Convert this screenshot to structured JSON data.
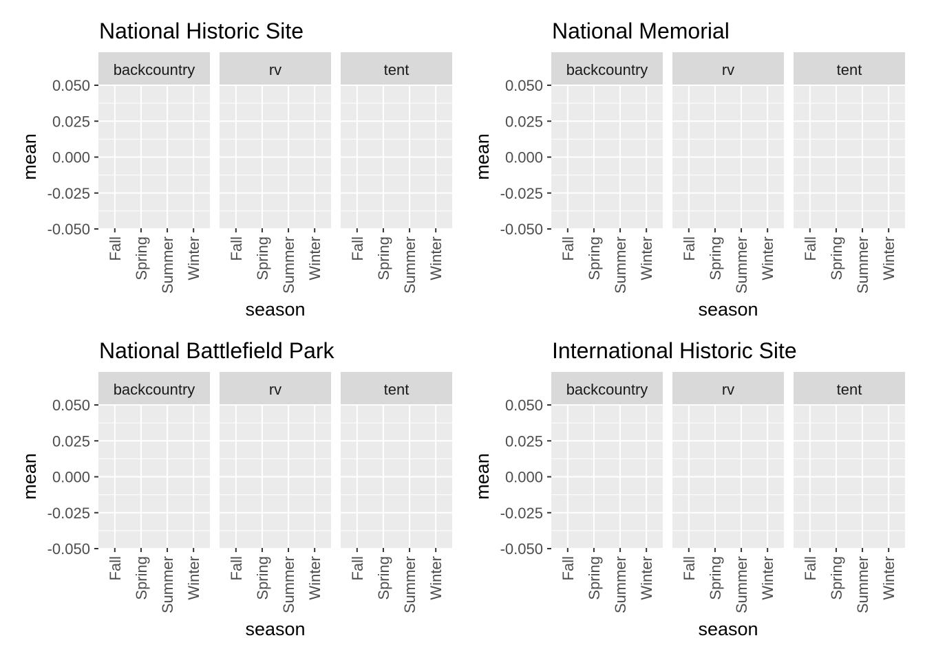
{
  "chart_data": [
    {
      "type": "bar",
      "title": "National Historic Site",
      "xlabel": "season",
      "ylabel": "mean",
      "facets": [
        "backcountry",
        "rv",
        "tent"
      ],
      "categories": [
        "Fall",
        "Spring",
        "Summer",
        "Winter"
      ],
      "yticks": [
        "0.050",
        "0.025",
        "0.000",
        "-0.025",
        "-0.050"
      ],
      "ylim": [
        -0.05,
        0.05
      ],
      "series": [],
      "grid": true,
      "legend": "none"
    },
    {
      "type": "bar",
      "title": "National Memorial",
      "xlabel": "season",
      "ylabel": "mean",
      "facets": [
        "backcountry",
        "rv",
        "tent"
      ],
      "categories": [
        "Fall",
        "Spring",
        "Summer",
        "Winter"
      ],
      "yticks": [
        "0.050",
        "0.025",
        "0.000",
        "-0.025",
        "-0.050"
      ],
      "ylim": [
        -0.05,
        0.05
      ],
      "series": [],
      "grid": true,
      "legend": "none"
    },
    {
      "type": "bar",
      "title": "National Battlefield Park",
      "xlabel": "season",
      "ylabel": "mean",
      "facets": [
        "backcountry",
        "rv",
        "tent"
      ],
      "categories": [
        "Fall",
        "Spring",
        "Summer",
        "Winter"
      ],
      "yticks": [
        "0.050",
        "0.025",
        "0.000",
        "-0.025",
        "-0.050"
      ],
      "ylim": [
        -0.05,
        0.05
      ],
      "series": [],
      "grid": true,
      "legend": "none"
    },
    {
      "type": "bar",
      "title": "International Historic Site",
      "xlabel": "season",
      "ylabel": "mean",
      "facets": [
        "backcountry",
        "rv",
        "tent"
      ],
      "categories": [
        "Fall",
        "Spring",
        "Summer",
        "Winter"
      ],
      "yticks": [
        "0.050",
        "0.025",
        "0.000",
        "-0.025",
        "-0.050"
      ],
      "ylim": [
        -0.05,
        0.05
      ],
      "series": [],
      "grid": true,
      "legend": "none"
    }
  ],
  "colors": {
    "panel_background": "#ebebeb",
    "strip_background": "#d9d9d9",
    "grid_line": "#ffffff",
    "tick_text": "#4d4d4d",
    "text": "#1a1a1a"
  }
}
